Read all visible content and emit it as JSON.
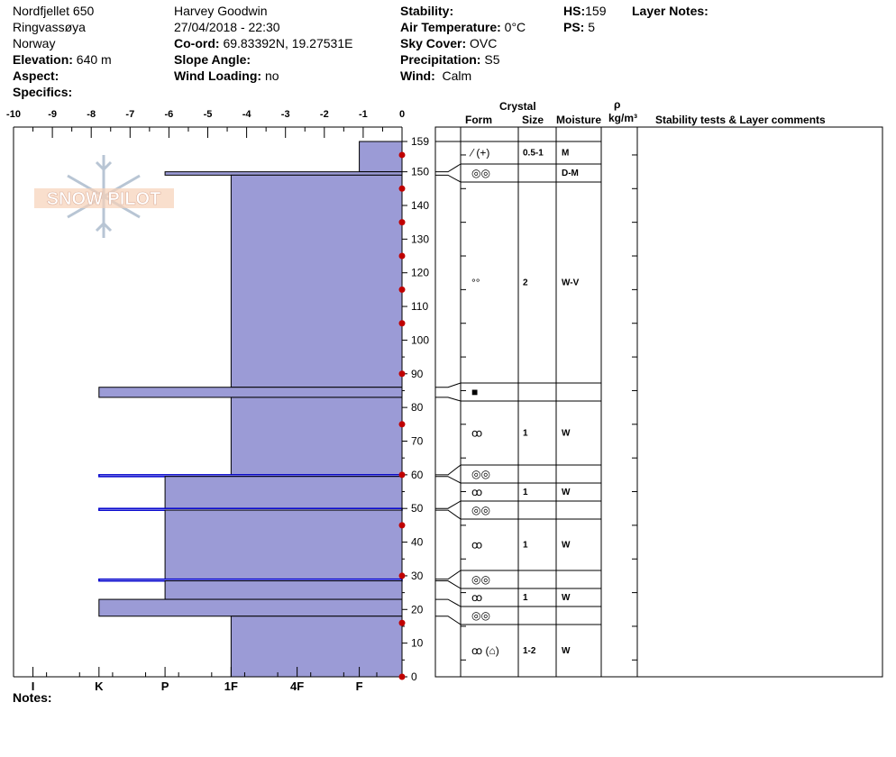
{
  "header": {
    "location": "Nordfjellet 650",
    "region": "Ringvassøya",
    "country": "Norway",
    "elevation_label": "Elevation:",
    "elevation": "640 m",
    "aspect_label": "Aspect:",
    "aspect": "",
    "specifics_label": "Specifics:",
    "observer": "Harvey Goodwin",
    "datetime": "27/04/2018 - 22:30",
    "coord_label": "Co-ord:",
    "coord": "69.83392N, 19.27531E",
    "slope_label": "Slope Angle:",
    "slope": "",
    "wind_loading_label": "Wind Loading:",
    "wind_loading": "no",
    "stability_label": "Stability:",
    "stability": "",
    "air_temp_label": "Air Temperature:",
    "air_temp": "0°C",
    "sky_label": "Sky Cover:",
    "sky": "OVC",
    "precip_label": "Precipitation:",
    "precip": "S5",
    "wind_label": "Wind:",
    "wind": "Calm",
    "hs_label": "HS:",
    "hs": "159",
    "ps_label": "PS:",
    "ps": "5",
    "layer_notes_label": "Layer Notes:"
  },
  "notes_label": "Notes:",
  "logo_text": "SNOW PILOT",
  "table_headers": {
    "crystal": "Crystal",
    "form": "Form",
    "size": "Size",
    "moisture": "Moisture",
    "rho": "ρ",
    "density_unit": "kg/m³",
    "comments": "Stability tests & Layer comments"
  },
  "colors": {
    "layer_fill": "#9b9bd6",
    "thin_layer": "#0000cc",
    "temp_point": "#c00000"
  },
  "chart_data": {
    "type": "snow-profile",
    "temp_axis": {
      "min": -10,
      "max": 0,
      "ticks": [
        -10,
        -9,
        -8,
        -7,
        -6,
        -5,
        -4,
        -3,
        -2,
        -1,
        0
      ]
    },
    "hardness_axis": {
      "labels": [
        "I",
        "K",
        "P",
        "1F",
        "4F",
        "F"
      ],
      "values": [
        -9.5,
        -7.8,
        -6.1,
        -4.4,
        -2.7,
        -1.1
      ]
    },
    "height_axis": {
      "min": 0,
      "max": 159,
      "ticks": [
        0,
        10,
        20,
        30,
        40,
        50,
        60,
        70,
        80,
        90,
        100,
        110,
        120,
        130,
        140,
        150,
        159
      ]
    },
    "layers": [
      {
        "top": 159,
        "bottom": 150,
        "hardness": "F"
      },
      {
        "top": 150,
        "bottom": 149,
        "hardness": "P"
      },
      {
        "top": 149,
        "bottom": 86,
        "hardness": "1F"
      },
      {
        "top": 86,
        "bottom": 83,
        "hardness": "K"
      },
      {
        "top": 83,
        "bottom": 60,
        "hardness": "1F"
      },
      {
        "top": 60,
        "bottom": 59.5,
        "hardness": "K"
      },
      {
        "top": 59.5,
        "bottom": 50,
        "hardness": "P"
      },
      {
        "top": 50,
        "bottom": 49.5,
        "hardness": "K"
      },
      {
        "top": 49.5,
        "bottom": 29,
        "hardness": "P"
      },
      {
        "top": 29,
        "bottom": 28.5,
        "hardness": "K"
      },
      {
        "top": 28.5,
        "bottom": 23,
        "hardness": "P"
      },
      {
        "top": 23,
        "bottom": 18,
        "hardness": "K"
      },
      {
        "top": 18,
        "bottom": 0,
        "hardness": "1F"
      }
    ],
    "temperature_points": [
      {
        "h": 155,
        "t": 0
      },
      {
        "h": 145,
        "t": 0
      },
      {
        "h": 135,
        "t": 0
      },
      {
        "h": 125,
        "t": 0
      },
      {
        "h": 115,
        "t": 0
      },
      {
        "h": 105,
        "t": 0
      },
      {
        "h": 90,
        "t": 0
      },
      {
        "h": 75,
        "t": 0
      },
      {
        "h": 60,
        "t": 0
      },
      {
        "h": 45,
        "t": 0
      },
      {
        "h": 30,
        "t": 0
      },
      {
        "h": 16,
        "t": 0
      },
      {
        "h": 0,
        "t": 0
      }
    ],
    "table_rows": [
      {
        "form": "",
        "size": "",
        "moisture": ""
      },
      {
        "form": "⁄ (+)",
        "size": "0.5-1",
        "moisture": "M"
      },
      {
        "form": "◎◎",
        "size": "",
        "moisture": "D-M"
      },
      {
        "form": "°°",
        "size": "2",
        "moisture": "W-V"
      },
      {
        "form": "■",
        "size": "",
        "moisture": ""
      },
      {
        "form": "ꝏ",
        "size": "1",
        "moisture": "W"
      },
      {
        "form": "◎◎",
        "size": "",
        "moisture": ""
      },
      {
        "form": "ꝏ",
        "size": "1",
        "moisture": "W"
      },
      {
        "form": "◎◎",
        "size": "",
        "moisture": ""
      },
      {
        "form": "ꝏ",
        "size": "1",
        "moisture": "W"
      },
      {
        "form": "◎◎",
        "size": "",
        "moisture": ""
      },
      {
        "form": "ꝏ",
        "size": "1",
        "moisture": "W"
      },
      {
        "form": "◎◎",
        "size": "",
        "moisture": ""
      },
      {
        "form": "ꝏ (⌂)",
        "size": "1-2",
        "moisture": "W"
      }
    ]
  }
}
